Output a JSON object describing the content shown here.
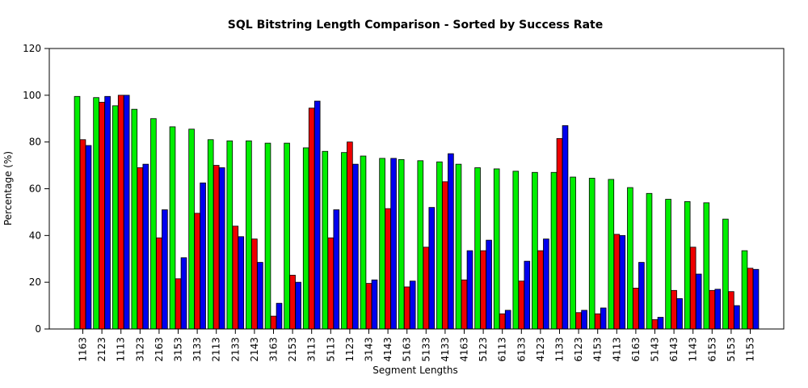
{
  "chart_data": {
    "type": "bar",
    "title": "SQL Bitstring Length Comparison - Sorted by Success Rate",
    "xlabel": "Segment Lengths",
    "ylabel": "Percentage (%)",
    "ylim": [
      0,
      120
    ],
    "yticks": [
      0,
      20,
      40,
      60,
      80,
      100,
      120
    ],
    "grid": false,
    "legend": "none",
    "categories": [
      "1163",
      "2123",
      "1113",
      "3123",
      "2163",
      "3153",
      "3133",
      "2113",
      "2133",
      "2143",
      "3163",
      "2153",
      "3113",
      "5113",
      "1123",
      "3143",
      "4143",
      "5163",
      "5133",
      "4133",
      "4163",
      "5123",
      "6113",
      "6133",
      "4123",
      "1133",
      "6123",
      "4153",
      "4113",
      "6163",
      "5143",
      "6143",
      "1143",
      "6153",
      "5153",
      "1153"
    ],
    "series": [
      {
        "color": "#00ee00",
        "values": [
          99.5,
          99,
          95.5,
          94,
          90,
          86.5,
          85.5,
          81,
          80.5,
          80.5,
          79.5,
          79.5,
          77.5,
          76,
          75.5,
          74,
          73,
          72.5,
          72,
          71.5,
          70.5,
          69,
          68.5,
          67.5,
          67,
          67,
          65,
          64.5,
          64,
          60.5,
          58,
          55.5,
          54.5,
          54,
          47,
          33.5
        ]
      },
      {
        "color": "#ee0000",
        "values": [
          81,
          97,
          100,
          69,
          39,
          21.5,
          49.5,
          70,
          44,
          38.5,
          5.5,
          23,
          94.5,
          39,
          80,
          19.5,
          51.5,
          18,
          35,
          63,
          21,
          33.5,
          6.5,
          20.5,
          33.5,
          81.5,
          7,
          6.5,
          40.5,
          17.5,
          4,
          16.5,
          35,
          16.5,
          16,
          26
        ]
      },
      {
        "color": "#0000ee",
        "values": [
          78.5,
          99.5,
          100,
          70.5,
          51,
          30.5,
          62.5,
          69,
          39.5,
          28.5,
          11,
          20,
          97.5,
          51,
          70.5,
          21,
          73,
          20.5,
          52,
          75,
          33.5,
          38,
          8,
          29,
          38.5,
          87,
          8,
          9,
          40,
          28.5,
          5,
          13,
          23.5,
          17,
          10,
          25.5
        ]
      }
    ]
  }
}
